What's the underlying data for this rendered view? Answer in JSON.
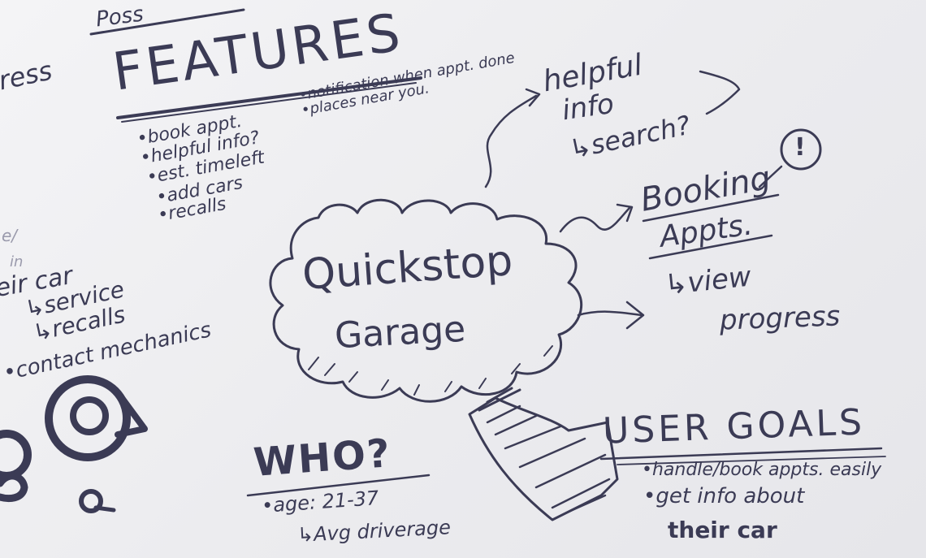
{
  "top_left": {
    "possible": "Poss",
    "features_title": "FEATURES",
    "progress_fragment": "ress"
  },
  "features": {
    "items": [
      "•book appt.",
      "•helpful info?",
      "•est. timeleft",
      "•add cars",
      "•recalls"
    ],
    "extra": [
      "•notification when appt. done",
      "•places near you."
    ]
  },
  "center": {
    "line1": "Quickstop",
    "line2": "Garage"
  },
  "helpful": {
    "line1": "helpful",
    "line2": "info",
    "line3": "↳search?"
  },
  "booking": {
    "line1": "Booking",
    "line2": "Appts.",
    "line3": "↳view",
    "line4": "progress",
    "exclaim": "!"
  },
  "left_notes": {
    "fragments": [
      "e/",
      "in"
    ],
    "line1": "eir car",
    "line2": "↳service",
    "line3": "↳recalls",
    "line4": "•contact mechanics"
  },
  "who": {
    "title": "WHO?",
    "age": "•age: 21-37",
    "driver": "↳Avg driverage"
  },
  "goals": {
    "title": "USER GOALS",
    "items": [
      "•handle/book appts. easily",
      "•get info about",
      "their car"
    ]
  }
}
